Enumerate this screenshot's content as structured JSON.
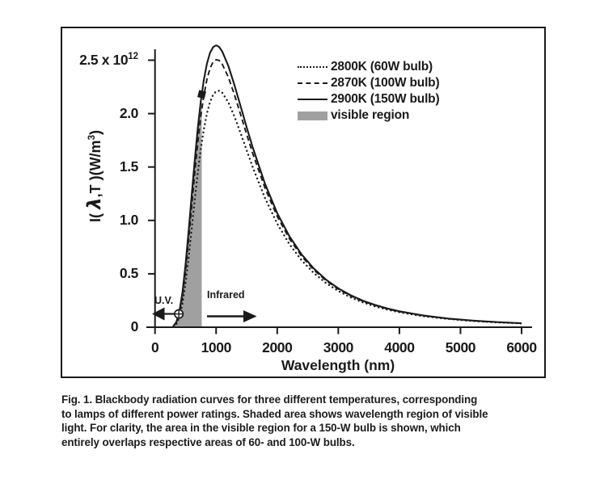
{
  "caption": {
    "lines": [
      "Fig. 1.  Blackbody radiation curves for three different temperatures, corresponding",
      "to lamps of different power ratings. Shaded area shows wavelength region of visible",
      "light. For clarity, the area in the visible region for a 150-W bulb is shown, which",
      "entirely overlaps respective areas of 60- and 100-W bulbs."
    ]
  },
  "chart_data": {
    "type": "line",
    "title": "",
    "xlabel": "Wavelength (nm)",
    "ylabel": "I( λ,T )(W/m³)",
    "ylabel_parts": {
      "prefix": "I( ",
      "lambda": "λ",
      "mid": ",T )(W/m",
      "sup": "3",
      "suffix": ")"
    },
    "xlim": [
      0,
      6000
    ],
    "ylim_1e12": [
      0,
      2.75
    ],
    "y_values_scale": "1e12",
    "grid": false,
    "legend_position": "upper right",
    "x_ticks": [
      {
        "v": 0,
        "label": "0"
      },
      {
        "v": 1000,
        "label": "1000"
      },
      {
        "v": 2000,
        "label": "2000"
      },
      {
        "v": 3000,
        "label": "3000"
      },
      {
        "v": 4000,
        "label": "4000"
      },
      {
        "v": 5000,
        "label": "5000"
      },
      {
        "v": 6000,
        "label": "6000"
      }
    ],
    "y_ticks": [
      {
        "v": 0,
        "label": "0"
      },
      {
        "v": 0.5,
        "label": "0.5"
      },
      {
        "v": 1.0,
        "label": "1.0"
      },
      {
        "v": 1.5,
        "label": "1.5"
      },
      {
        "v": 2.0,
        "label": "2.0"
      },
      {
        "v": 2.5,
        "label": "2.5 x 10",
        "sup": "12"
      }
    ],
    "legend": [
      {
        "label": "2800K (60W bulb)",
        "style": "dotted"
      },
      {
        "label": "2870K (100W bulb)",
        "style": "dashed"
      },
      {
        "label": "2900K (150W bulb)",
        "style": "solid"
      },
      {
        "label": "visible region",
        "style": "filled"
      }
    ],
    "x_nm": [
      300,
      350,
      400,
      450,
      500,
      550,
      600,
      650,
      700,
      750,
      765,
      800,
      850,
      900,
      950,
      1000,
      1050,
      1100,
      1200,
      1300,
      1400,
      1500,
      1600,
      1800,
      2000,
      2200,
      2400,
      2600,
      2800,
      3000,
      3200,
      3400,
      3600,
      3800,
      4000,
      4400,
      4800,
      5200,
      5600,
      6000
    ],
    "series": [
      {
        "name": "2800K (60W bulb)",
        "temperature_K": 2800,
        "line_style": "dotted",
        "y_1e12": [
          0.006,
          0.03,
          0.096,
          0.223,
          0.412,
          0.651,
          0.919,
          1.189,
          1.446,
          1.671,
          1.727,
          1.856,
          2.002,
          2.107,
          2.175,
          2.208,
          2.214,
          2.196,
          2.106,
          1.973,
          1.818,
          1.657,
          1.498,
          1.21,
          0.97,
          0.777,
          0.626,
          0.507,
          0.413,
          0.339,
          0.28,
          0.233,
          0.195,
          0.165,
          0.14,
          0.102,
          0.077,
          0.058,
          0.045,
          0.036
        ]
      },
      {
        "name": "2870K (100W bulb)",
        "temperature_K": 2870,
        "line_style": "dashed",
        "y_1e12": [
          0.009,
          0.043,
          0.131,
          0.294,
          0.53,
          0.818,
          1.132,
          1.443,
          1.73,
          1.977,
          2.036,
          2.172,
          2.321,
          2.423,
          2.483,
          2.504,
          2.498,
          2.463,
          2.342,
          2.177,
          1.993,
          1.806,
          1.626,
          1.303,
          1.038,
          0.828,
          0.664,
          0.536,
          0.436,
          0.357,
          0.294,
          0.244,
          0.205,
          0.172,
          0.146,
          0.107,
          0.08,
          0.061,
          0.047,
          0.037
        ]
      },
      {
        "name": "2900K (150W bulb)",
        "temperature_K": 2900,
        "line_style": "solid",
        "y_1e12": [
          0.01,
          0.05,
          0.15,
          0.33,
          0.588,
          0.899,
          1.234,
          1.562,
          1.863,
          2.119,
          2.18,
          2.318,
          2.468,
          2.568,
          2.622,
          2.639,
          2.624,
          2.582,
          2.447,
          2.268,
          2.071,
          1.872,
          1.682,
          1.343,
          1.068,
          0.851,
          0.681,
          0.549,
          0.445,
          0.364,
          0.3,
          0.249,
          0.209,
          0.176,
          0.149,
          0.109,
          0.081,
          0.062,
          0.048,
          0.037
        ]
      }
    ],
    "visible_region": {
      "label": "visible region",
      "start_nm": 390,
      "end_nm": 765
    },
    "annotations": {
      "uv_label": "U.V.",
      "ir_label": "Infrared",
      "markers": [
        {
          "shape": "circle-plus",
          "x_nm": 390,
          "y_1e12": 0.124
        },
        {
          "shape": "filled-square",
          "x_nm": 765,
          "y_1e12": 2.18
        }
      ]
    },
    "colors": {
      "ink": "#1a1a1a",
      "region_fill": "#a0a0a0"
    }
  }
}
